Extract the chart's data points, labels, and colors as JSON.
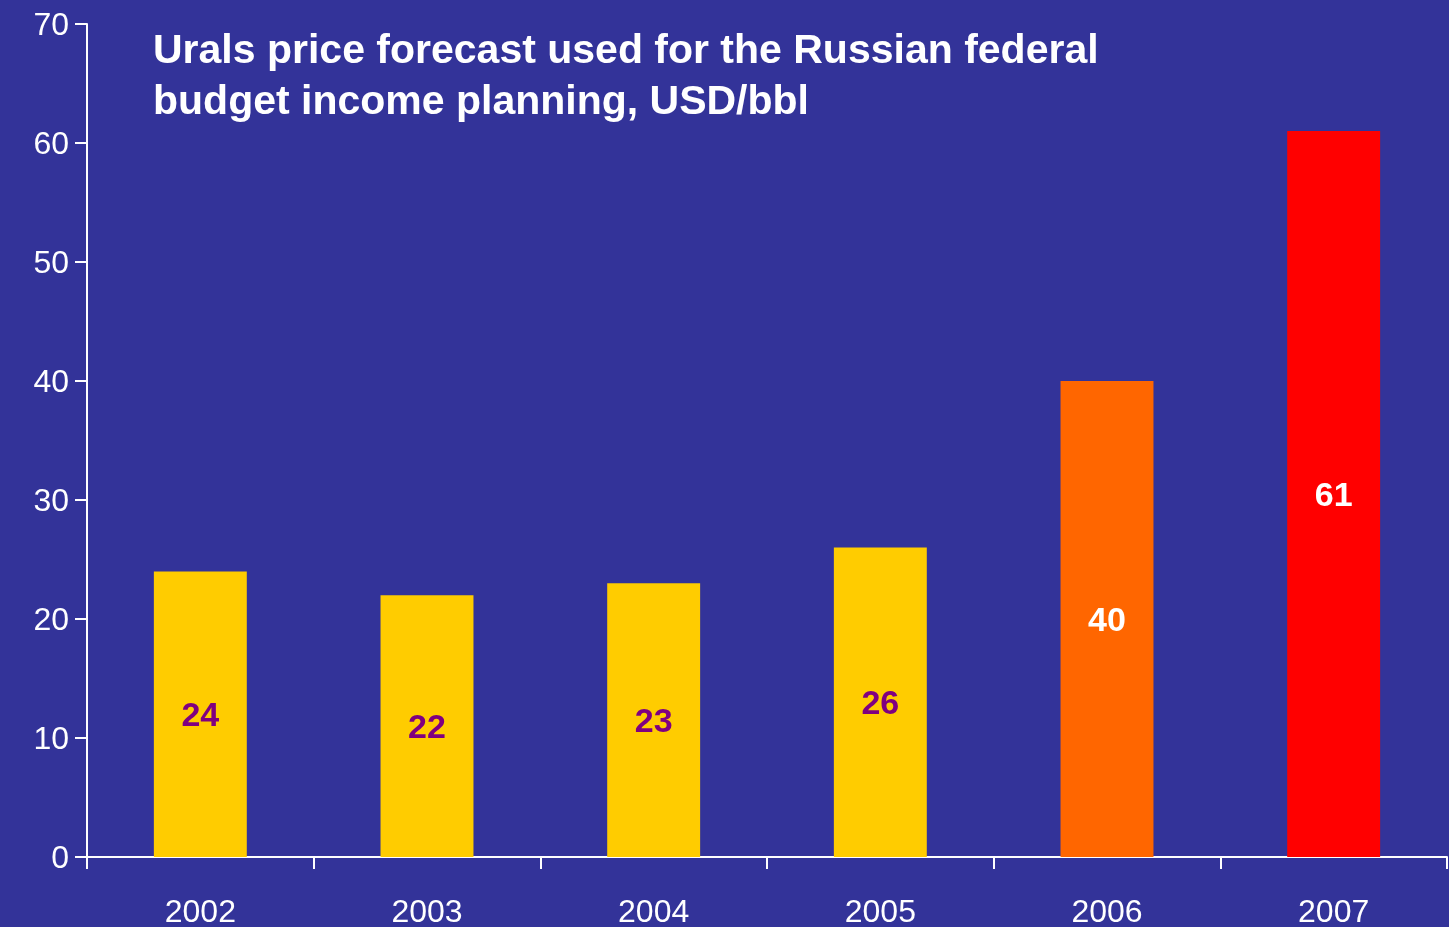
{
  "chart_data": {
    "type": "bar",
    "title": "Urals price forecast used for the Russian federal budget income planning, USD/bbl",
    "categories": [
      "2002",
      "2003",
      "2004",
      "2005",
      "2006",
      "2007"
    ],
    "values": [
      24,
      22,
      23,
      26,
      40,
      61
    ],
    "colors": [
      "#ffcc00",
      "#ffcc00",
      "#ffcc00",
      "#ffcc00",
      "#ff6600",
      "#ff0000"
    ],
    "ylim": [
      0,
      70
    ],
    "yticks": [
      0,
      10,
      20,
      30,
      40,
      50,
      60,
      70
    ],
    "grid": false,
    "data_labels": true
  }
}
